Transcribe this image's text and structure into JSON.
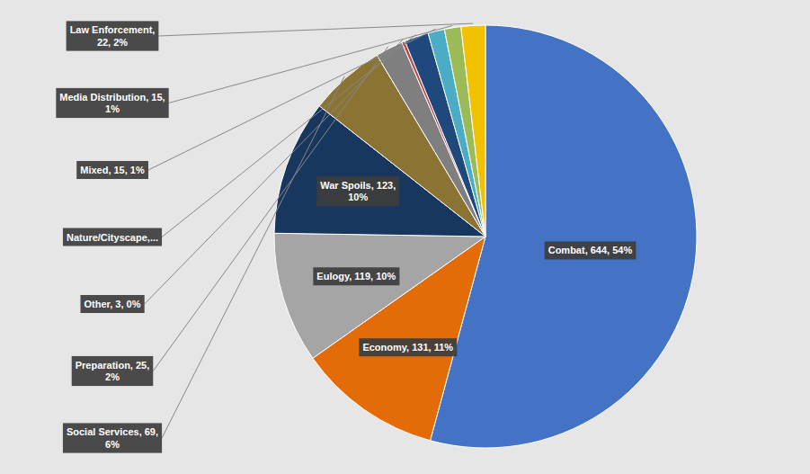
{
  "chart_data": {
    "type": "pie",
    "categories": [
      "Combat, 644, 54%",
      "Economy, 131, 11%",
      "Eulogy, 119, 10%",
      "War Spoils, 123,\n10%",
      "Social Services, 69,\n6%",
      "Preparation, 25,\n2%",
      "Other, 3, 0%",
      "Nature/Cityscape,...",
      "Mixed, 15, 1%",
      "Media Distribution, 15,\n1%",
      "Law Enforcement,\n22, 2%"
    ],
    "values": [
      644,
      131,
      119,
      123,
      69,
      25,
      3,
      22,
      15,
      15,
      22
    ],
    "colors": [
      "#4472C4",
      "#E36C09",
      "#A5A5A5",
      "#17375E",
      "#8B7333",
      "#7F7F7F",
      "#BE4B48",
      "#1F497D",
      "#4BACC6",
      "#9BBB59",
      "#F2C200"
    ]
  }
}
